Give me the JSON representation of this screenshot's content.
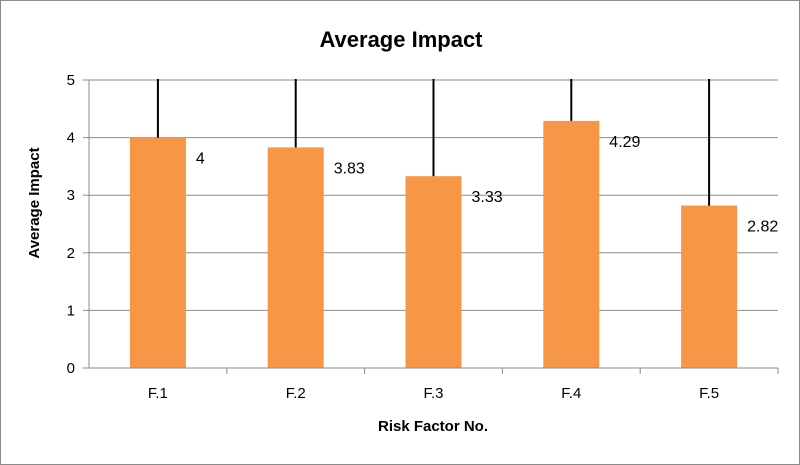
{
  "chart_data": {
    "type": "bar",
    "title": "Average Impact",
    "xlabel": "Risk Factor No.",
    "ylabel": "Average Impact",
    "categories": [
      "F.1",
      "F.2",
      "F.3",
      "F.4",
      "F.5"
    ],
    "values": [
      4,
      3.83,
      3.33,
      4.29,
      2.82
    ],
    "data_labels": [
      "4",
      "3.83",
      "3.33",
      "4.29",
      "2.82"
    ],
    "error_bar_upper": [
      5,
      5,
      5,
      5,
      5
    ],
    "ylim": [
      0,
      5
    ],
    "yticks": [
      0,
      1,
      2,
      3,
      4,
      5
    ],
    "grid": "horizontal",
    "legend": "none",
    "colors": {
      "bar": "#F79646",
      "error_bar": "#000000",
      "grid": "#8c8c8c",
      "axis": "#8c8c8c"
    }
  }
}
